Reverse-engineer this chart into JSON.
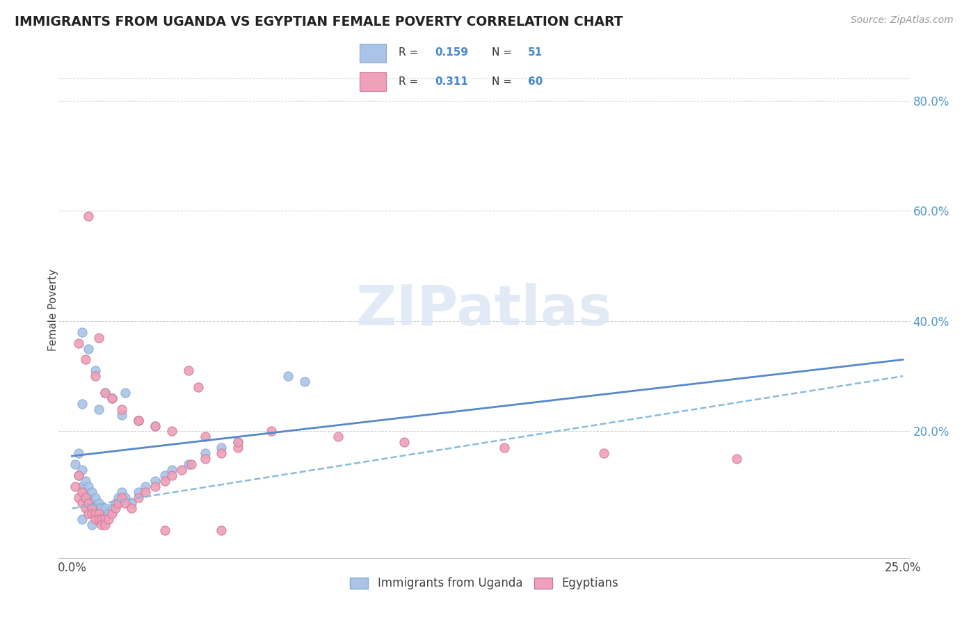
{
  "title": "IMMIGRANTS FROM UGANDA VS EGYPTIAN FEMALE POVERTY CORRELATION CHART",
  "source": "Source: ZipAtlas.com",
  "ylabel": "Female Poverty",
  "xlim": [
    0.0,
    0.25
  ],
  "ylim": [
    -0.03,
    0.87
  ],
  "color_blue": "#aac4e8",
  "color_pink": "#f0a0b8",
  "line_blue_color": "#6699cc",
  "line_pink_color": "#e05878",
  "watermark": "ZIPatlas",
  "uganda_x": [
    0.001,
    0.002,
    0.002,
    0.003,
    0.003,
    0.004,
    0.004,
    0.005,
    0.005,
    0.006,
    0.006,
    0.007,
    0.007,
    0.008,
    0.008,
    0.009,
    0.009,
    0.01,
    0.01,
    0.011,
    0.012,
    0.013,
    0.014,
    0.015,
    0.016,
    0.018,
    0.02,
    0.022,
    0.025,
    0.028,
    0.03,
    0.035,
    0.04,
    0.045,
    0.05,
    0.003,
    0.005,
    0.007,
    0.01,
    0.015,
    0.02,
    0.025,
    0.065,
    0.07,
    0.003,
    0.008,
    0.012,
    0.016,
    0.003,
    0.006,
    0.009
  ],
  "uganda_y": [
    0.14,
    0.16,
    0.12,
    0.13,
    0.1,
    0.11,
    0.09,
    0.1,
    0.08,
    0.09,
    0.07,
    0.08,
    0.06,
    0.07,
    0.06,
    0.06,
    0.05,
    0.05,
    0.06,
    0.05,
    0.06,
    0.07,
    0.08,
    0.09,
    0.08,
    0.07,
    0.09,
    0.1,
    0.11,
    0.12,
    0.13,
    0.14,
    0.16,
    0.17,
    0.18,
    0.38,
    0.35,
    0.31,
    0.27,
    0.23,
    0.22,
    0.21,
    0.3,
    0.29,
    0.25,
    0.24,
    0.26,
    0.27,
    0.04,
    0.03,
    0.04
  ],
  "egypt_x": [
    0.001,
    0.002,
    0.002,
    0.003,
    0.003,
    0.004,
    0.004,
    0.005,
    0.005,
    0.006,
    0.006,
    0.007,
    0.007,
    0.008,
    0.008,
    0.009,
    0.009,
    0.01,
    0.01,
    0.011,
    0.012,
    0.013,
    0.014,
    0.015,
    0.016,
    0.018,
    0.02,
    0.022,
    0.025,
    0.028,
    0.03,
    0.033,
    0.036,
    0.04,
    0.045,
    0.05,
    0.002,
    0.004,
    0.007,
    0.01,
    0.015,
    0.02,
    0.025,
    0.03,
    0.04,
    0.05,
    0.06,
    0.08,
    0.1,
    0.13,
    0.16,
    0.2,
    0.005,
    0.008,
    0.012,
    0.02,
    0.035,
    0.038,
    0.028,
    0.045
  ],
  "egypt_y": [
    0.1,
    0.12,
    0.08,
    0.09,
    0.07,
    0.08,
    0.06,
    0.07,
    0.05,
    0.06,
    0.05,
    0.05,
    0.04,
    0.05,
    0.04,
    0.04,
    0.03,
    0.04,
    0.03,
    0.04,
    0.05,
    0.06,
    0.07,
    0.08,
    0.07,
    0.06,
    0.08,
    0.09,
    0.1,
    0.11,
    0.12,
    0.13,
    0.14,
    0.15,
    0.16,
    0.17,
    0.36,
    0.33,
    0.3,
    0.27,
    0.24,
    0.22,
    0.21,
    0.2,
    0.19,
    0.18,
    0.2,
    0.19,
    0.18,
    0.17,
    0.16,
    0.15,
    0.59,
    0.37,
    0.26,
    0.22,
    0.31,
    0.28,
    0.02,
    0.02
  ],
  "uganda_line_x": [
    0.0,
    0.25
  ],
  "uganda_line_y": [
    0.155,
    0.33
  ],
  "egypt_line_x": [
    0.0,
    0.25
  ],
  "egypt_line_y": [
    0.06,
    0.3
  ],
  "right_ytick_vals": [
    0.2,
    0.4,
    0.6,
    0.8
  ],
  "right_ytick_labels": [
    "20.0%",
    "40.0%",
    "60.0%",
    "80.0%"
  ]
}
